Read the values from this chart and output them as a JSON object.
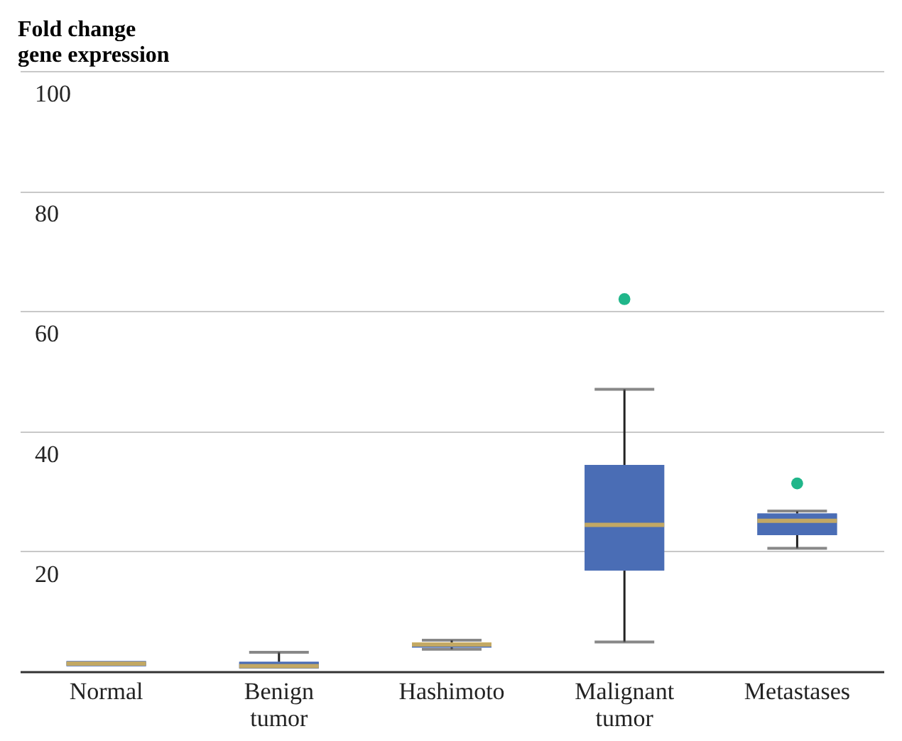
{
  "chart_data": {
    "type": "box",
    "ylabel": "Fold change gene expression",
    "categories": [
      "Normal",
      "Benign tumor",
      "Hashimoto",
      "Malignant tumor",
      "Metastases"
    ],
    "boxes": [
      {
        "low": 0.9,
        "q1": 0.9,
        "median": 1.3,
        "q3": 1.7,
        "high": 1.7
      },
      {
        "low": 0.5,
        "q1": 0.5,
        "median": 0.9,
        "q3": 1.6,
        "high": 3.2
      },
      {
        "low": 3.7,
        "q1": 4.0,
        "median": 4.5,
        "q3": 4.8,
        "high": 5.2
      },
      {
        "low": 4.9,
        "q1": 16.8,
        "median": 24.4,
        "q3": 34.4,
        "high": 47,
        "outliers": [
          62
        ]
      },
      {
        "low": 20.5,
        "q1": 22.7,
        "median": 25.1,
        "q3": 26.3,
        "high": 26.7,
        "outliers": [
          31.3
        ]
      }
    ],
    "color": "#4a6db5",
    "ylim": [
      0,
      100
    ],
    "yticks": [
      20,
      40,
      60,
      80,
      100
    ],
    "grid": "y"
  }
}
